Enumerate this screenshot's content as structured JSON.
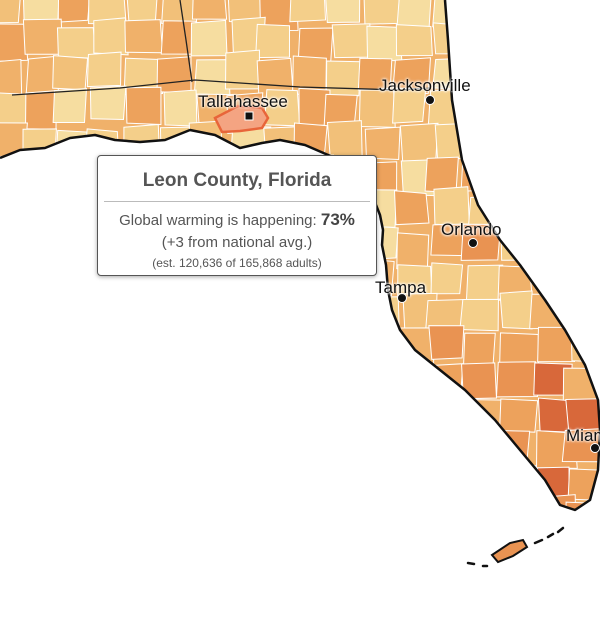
{
  "map": {
    "colors": {
      "water": "#ffffff",
      "coast": "#111111",
      "state_border": "#222222",
      "county_border": "#ffffff",
      "highlight_fill": "#f4a482",
      "highlight_stroke": "#e8653a",
      "scale": [
        "#f6dda0",
        "#f4cf8a",
        "#f2c079",
        "#f0b16a",
        "#eda25c",
        "#e99352",
        "#e07f43",
        "#d8683a"
      ]
    },
    "cities": [
      {
        "name": "Tallahassee",
        "marker": "square"
      },
      {
        "name": "Jacksonville",
        "marker": "circle"
      },
      {
        "name": "Orlando",
        "marker": "circle"
      },
      {
        "name": "Tampa",
        "marker": "circle"
      },
      {
        "name": "Miami",
        "marker": "circle"
      }
    ]
  },
  "tooltip": {
    "title": "Leon County, Florida",
    "metric_label": "Global warming is happening:",
    "metric_value": "73%",
    "comparison": "(+3 from national avg.)",
    "estimate": "(est. 120,636 of 165,868 adults)"
  }
}
